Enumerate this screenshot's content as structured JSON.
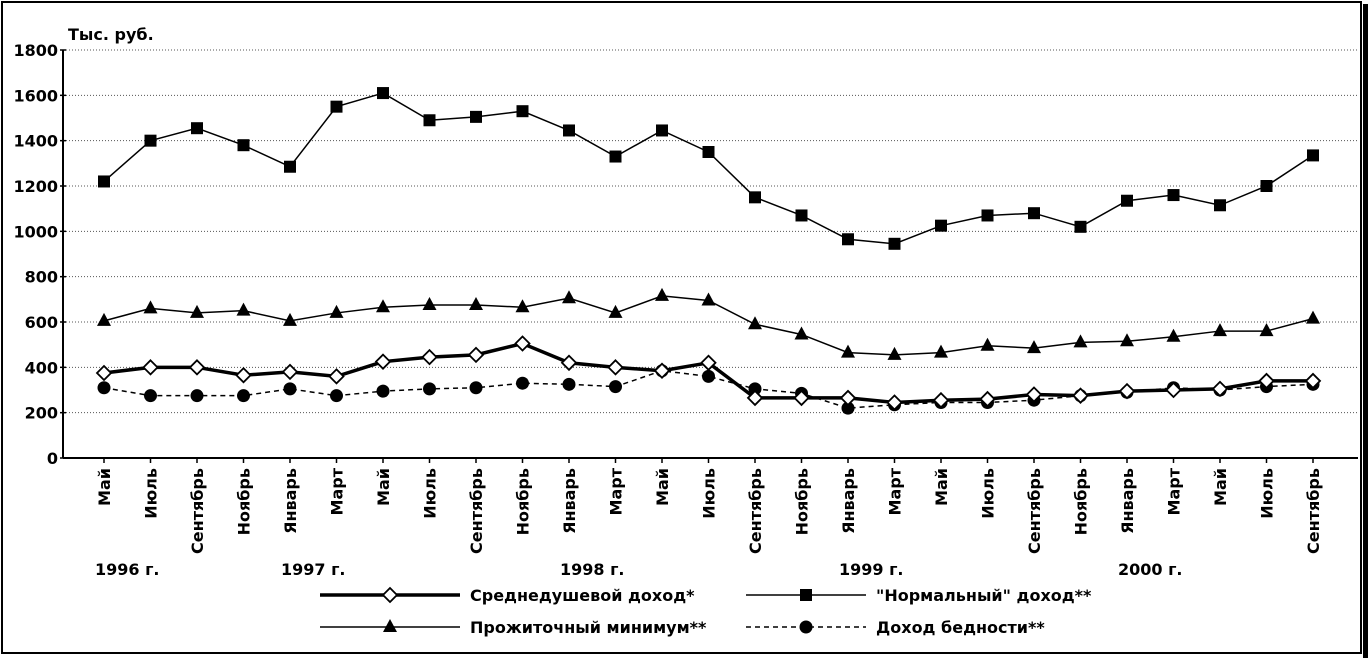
{
  "chart_data": {
    "type": "line",
    "ylabel": "Тыс. руб.",
    "ylim": [
      0,
      1800
    ],
    "yticks": [
      0,
      200,
      400,
      600,
      800,
      1000,
      1200,
      1400,
      1600,
      1800
    ],
    "grid": "horizontal dotted",
    "legend_position": "bottom",
    "categories": [
      "Май",
      "Июль",
      "Сентябрь",
      "Ноябрь",
      "Январь",
      "Март",
      "Май",
      "Июль",
      "Сентябрь",
      "Ноябрь",
      "Январь",
      "Март",
      "Май",
      "Июль",
      "Сентябрь",
      "Ноябрь",
      "Январь",
      "Март",
      "Май",
      "Июль",
      "Сентябрь",
      "Ноябрь",
      "Январь",
      "Март",
      "Май",
      "Июль",
      "Сентябрь"
    ],
    "years": [
      {
        "label": "1996 г.",
        "at_index": 0.5
      },
      {
        "label": "1997 г.",
        "at_index": 4.5
      },
      {
        "label": "1998 г.",
        "at_index": 10.5
      },
      {
        "label": "1999 г.",
        "at_index": 16.5
      },
      {
        "label": "2000 г.",
        "at_index": 22.5
      }
    ],
    "series": [
      {
        "name": "Среднедушевой доход*",
        "marker": "diamond",
        "line": "bold",
        "color": "#000000",
        "values": [
          375,
          400,
          400,
          365,
          380,
          360,
          425,
          445,
          455,
          505,
          420,
          400,
          385,
          420,
          265,
          265,
          265,
          245,
          255,
          260,
          280,
          275,
          295,
          300,
          305,
          340,
          340
        ]
      },
      {
        "name": "\"Нормальный\" доход**",
        "marker": "square",
        "line": "solid",
        "color": "#000000",
        "values": [
          1220,
          1400,
          1455,
          1380,
          1285,
          1550,
          1610,
          1490,
          1505,
          1530,
          1445,
          1330,
          1445,
          1350,
          1150,
          1070,
          965,
          945,
          1025,
          1070,
          1080,
          1020,
          1135,
          1160,
          1115,
          1200,
          1335
        ]
      },
      {
        "name": "Прожиточный минимум**",
        "marker": "triangle",
        "line": "solid",
        "color": "#000000",
        "values": [
          605,
          660,
          640,
          650,
          605,
          640,
          665,
          675,
          675,
          665,
          705,
          640,
          715,
          695,
          590,
          545,
          465,
          455,
          465,
          495,
          485,
          510,
          515,
          535,
          560,
          560,
          615
        ]
      },
      {
        "name": "Доход бедности**",
        "marker": "circle",
        "line": "dashed",
        "color": "#000000",
        "values": [
          310,
          275,
          275,
          275,
          305,
          275,
          295,
          305,
          310,
          330,
          325,
          315,
          385,
          360,
          305,
          285,
          220,
          235,
          245,
          245,
          255,
          275,
          290,
          310,
          300,
          315,
          325
        ]
      }
    ]
  }
}
